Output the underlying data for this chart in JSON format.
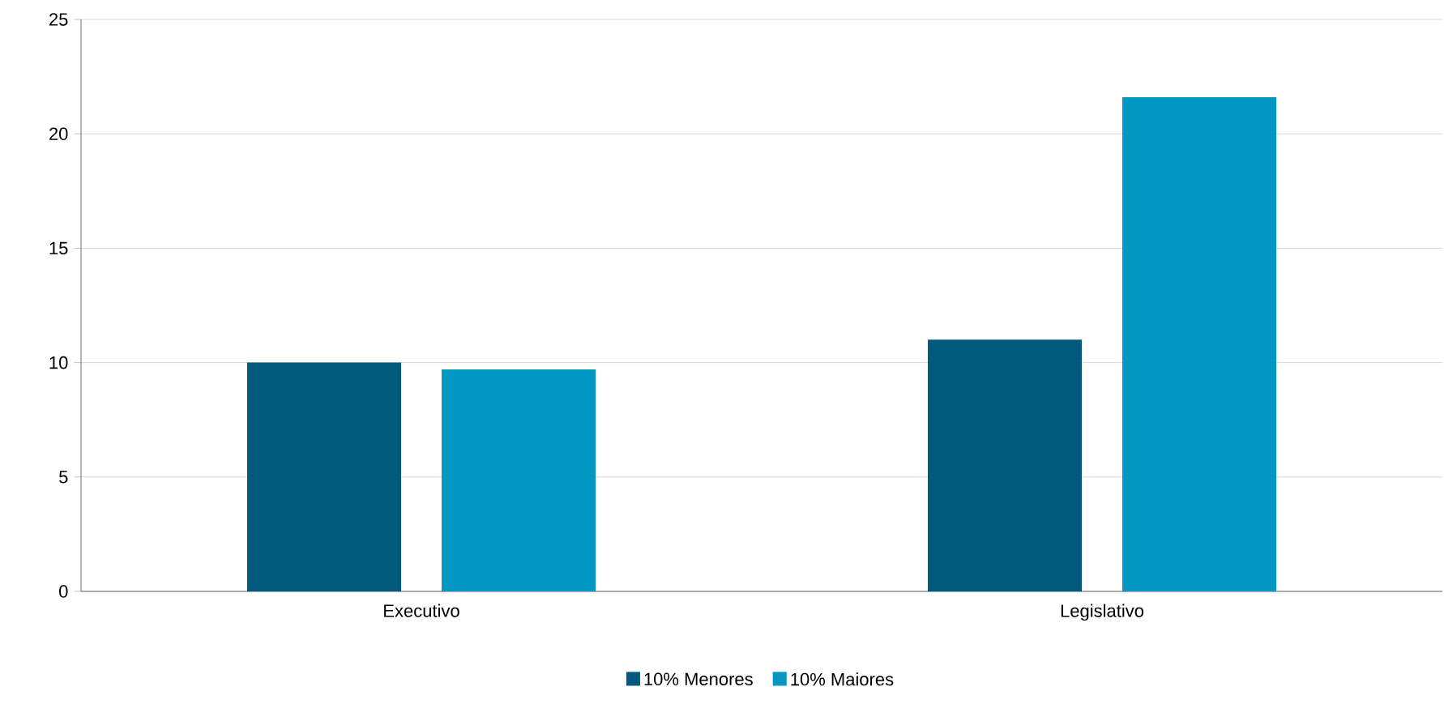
{
  "chart_data": {
    "type": "bar",
    "categories": [
      "Executivo",
      "Legislativo"
    ],
    "series": [
      {
        "name": "10% Menores",
        "color": "#005a7d",
        "values": [
          10.0,
          11.0
        ]
      },
      {
        "name": "10% Maiores",
        "color": "#0397c3",
        "values": [
          9.7,
          21.6
        ]
      }
    ],
    "ylim": [
      0,
      25
    ],
    "yticks": [
      0,
      5,
      10,
      15,
      20,
      25
    ],
    "grid": "y",
    "legend": "bottom"
  }
}
